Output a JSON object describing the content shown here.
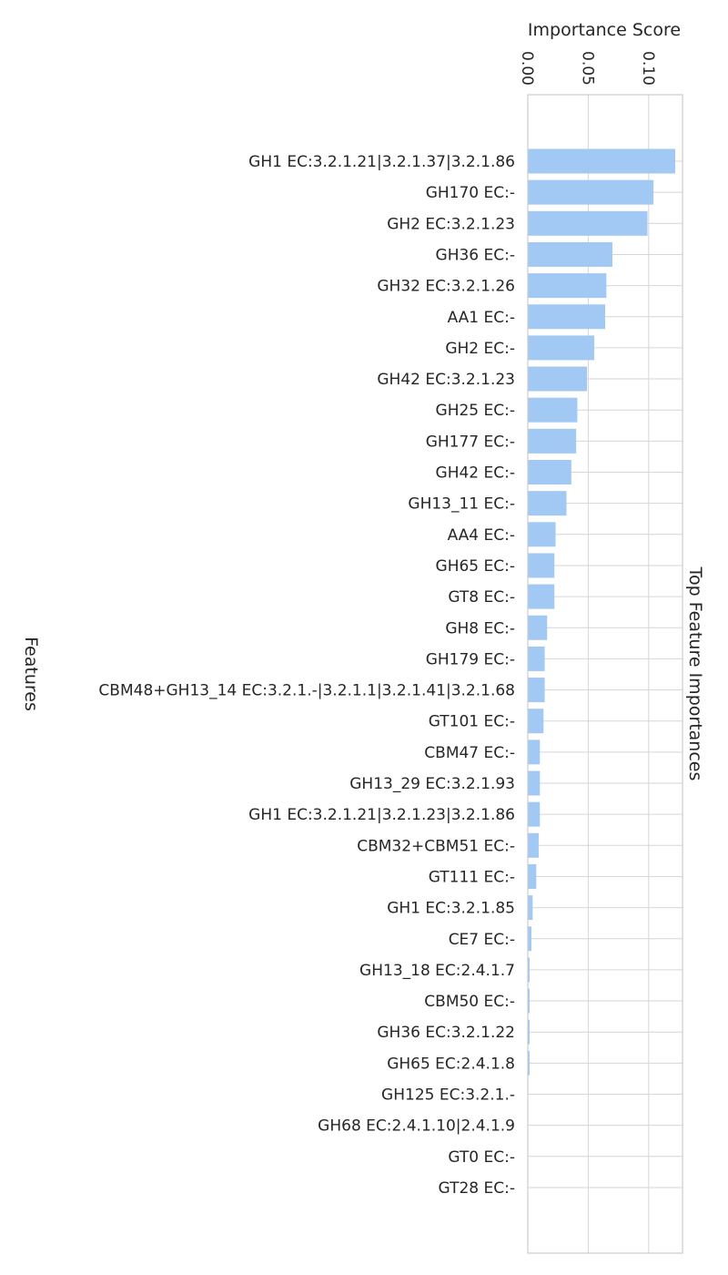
{
  "chart_data": {
    "type": "bar",
    "orientation": "horizontal",
    "xlabel": "Importance Score",
    "ylabel": "Features",
    "side_label": "Top Feature Importances",
    "xlim": [
      0,
      0.128
    ],
    "x_ticks": [
      0.0,
      0.05,
      0.1
    ],
    "x_tick_labels": [
      "0.00",
      "0.05",
      "0.10"
    ],
    "grid": true,
    "bar_color": "#a1c9f4",
    "categories": [
      "GH1 EC:3.2.1.21|3.2.1.37|3.2.1.86",
      "GH170 EC:-",
      "GH2 EC:3.2.1.23",
      "GH36 EC:-",
      "GH32 EC:3.2.1.26",
      "AA1 EC:-",
      "GH2 EC:-",
      "GH42 EC:3.2.1.23",
      "GH25 EC:-",
      "GH177 EC:-",
      "GH42 EC:-",
      "GH13_11 EC:-",
      "AA4 EC:-",
      "GH65 EC:-",
      "GT8 EC:-",
      "GH8 EC:-",
      "GH179 EC:-",
      "CBM48+GH13_14 EC:3.2.1.-|3.2.1.1|3.2.1.41|3.2.1.68",
      "GT101 EC:-",
      "CBM47 EC:-",
      "GH13_29 EC:3.2.1.93",
      "GH1 EC:3.2.1.21|3.2.1.23|3.2.1.86",
      "CBM32+CBM51 EC:-",
      "GT111 EC:-",
      "GH1 EC:3.2.1.85",
      "CE7 EC:-",
      "GH13_18 EC:2.4.1.7",
      "CBM50 EC:-",
      "GH36 EC:3.2.1.22",
      "GH65 EC:2.4.1.8",
      "GH125 EC:3.2.1.-",
      "GH68 EC:2.4.1.10|2.4.1.9",
      "GT0 EC:-",
      "GT28 EC:-"
    ],
    "values": [
      0.122,
      0.104,
      0.099,
      0.07,
      0.065,
      0.064,
      0.055,
      0.049,
      0.041,
      0.04,
      0.036,
      0.032,
      0.023,
      0.022,
      0.022,
      0.016,
      0.014,
      0.014,
      0.013,
      0.01,
      0.01,
      0.01,
      0.009,
      0.007,
      0.004,
      0.003,
      0.0015,
      0.0015,
      0.0015,
      0.0015,
      0.0,
      0.0,
      0.0,
      0.0
    ]
  }
}
